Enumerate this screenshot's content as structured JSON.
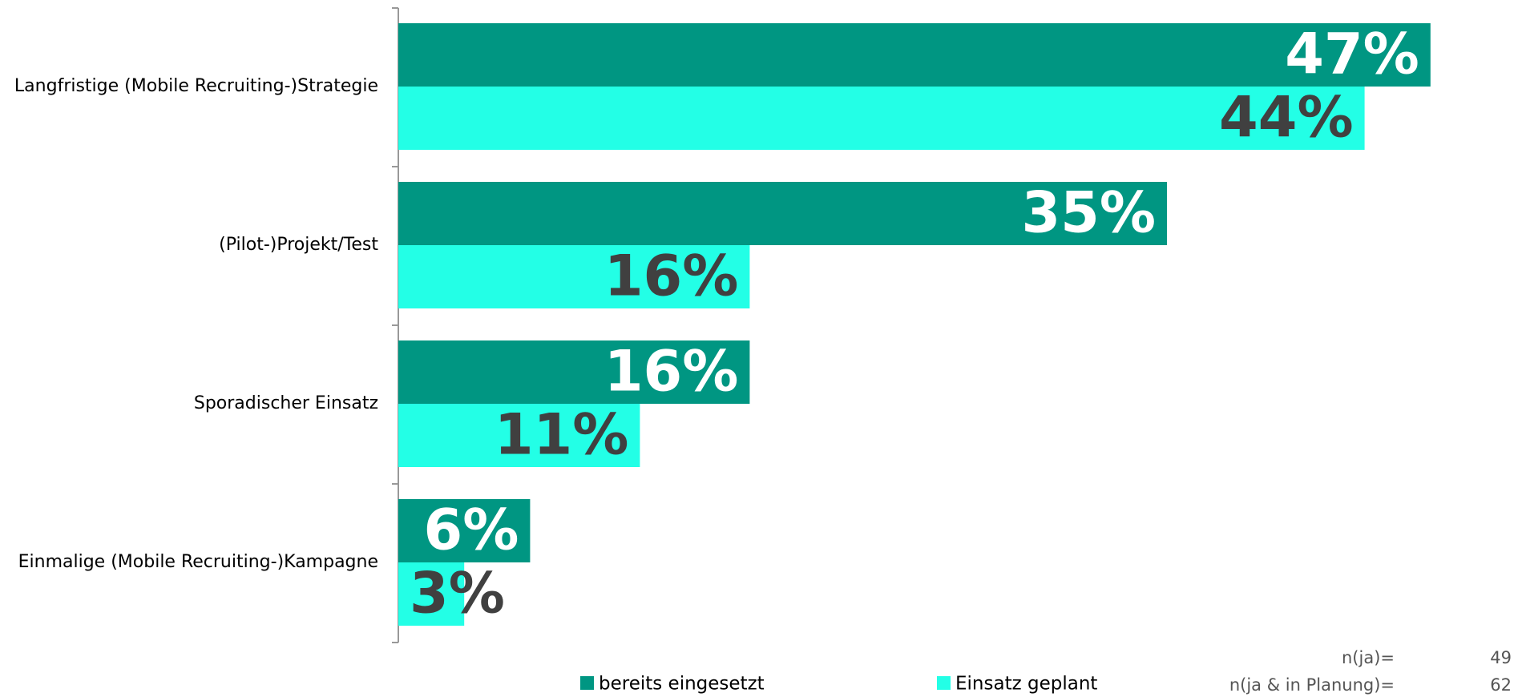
{
  "chart_data": {
    "type": "bar",
    "orientation": "horizontal",
    "categories": [
      "Langfristige (Mobile Recruiting-)Strategie",
      "(Pilot-)Projekt/Test",
      "Sporadischer Einsatz",
      "Einmalige (Mobile Recruiting-)Kampagne"
    ],
    "series": [
      {
        "name": "bereits eingesetzt",
        "color": "#009682",
        "label_color": "#ffffff",
        "values": [
          47,
          35,
          16,
          6
        ],
        "value_labels": [
          "47%",
          "35%",
          "16%",
          "6%"
        ]
      },
      {
        "name": "Einsatz geplant",
        "color": "#23ffe6",
        "label_color": "#404040",
        "values": [
          44,
          16,
          11,
          3
        ],
        "value_labels": [
          "44%",
          "16%",
          "11%",
          "3%"
        ]
      }
    ],
    "legend": "bottom",
    "notes": [
      {
        "label": "n(ja)=",
        "value": 49
      },
      {
        "label": "n(ja & in Planung)=",
        "value": 62
      }
    ]
  }
}
